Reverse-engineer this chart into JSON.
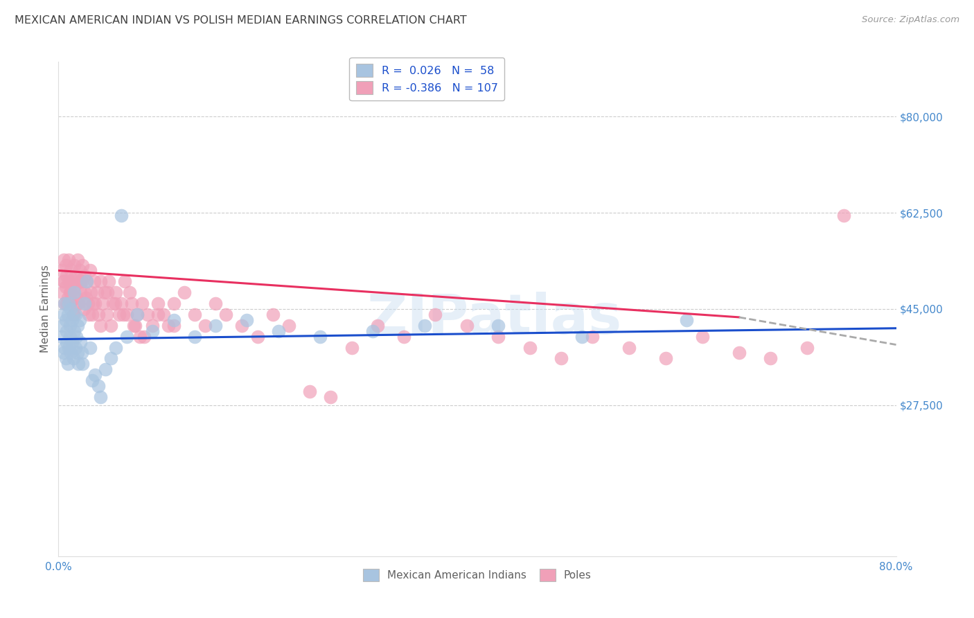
{
  "title": "MEXICAN AMERICAN INDIAN VS POLISH MEDIAN EARNINGS CORRELATION CHART",
  "source": "Source: ZipAtlas.com",
  "ylabel_label": "Median Earnings",
  "xlim": [
    0.0,
    0.8
  ],
  "ylim": [
    0,
    90000
  ],
  "yticks": [
    27500,
    45000,
    62500,
    80000
  ],
  "yticklabels": [
    "$27,500",
    "$45,000",
    "$62,500",
    "$80,000"
  ],
  "blue_color": "#a8c4e0",
  "pink_color": "#f0a0b8",
  "blue_line_color": "#1a4ecc",
  "pink_line_color": "#e83060",
  "dash_line_color": "#aaaaaa",
  "blue_R": 0.026,
  "blue_N": 58,
  "pink_R": -0.386,
  "pink_N": 107,
  "legend_label_blue": "Mexican American Indians",
  "legend_label_pink": "Poles",
  "watermark": "ZIPatlas",
  "background_color": "#ffffff",
  "grid_color": "#cccccc",
  "title_color": "#404040",
  "axis_label_color": "#606060",
  "tick_color": "#4488cc",
  "blue_line_y0": 39500,
  "blue_line_y1": 41500,
  "pink_line_y0": 52000,
  "pink_line_y1_solid": 43500,
  "pink_line_x_solid": 0.65,
  "pink_line_y1_dash": 38500,
  "blue_scatter_x": [
    0.003,
    0.004,
    0.005,
    0.005,
    0.006,
    0.006,
    0.007,
    0.007,
    0.008,
    0.008,
    0.009,
    0.009,
    0.01,
    0.01,
    0.011,
    0.011,
    0.012,
    0.012,
    0.013,
    0.013,
    0.014,
    0.015,
    0.015,
    0.016,
    0.016,
    0.017,
    0.018,
    0.018,
    0.019,
    0.02,
    0.021,
    0.022,
    0.023,
    0.025,
    0.027,
    0.03,
    0.032,
    0.035,
    0.038,
    0.04,
    0.045,
    0.05,
    0.055,
    0.06,
    0.065,
    0.075,
    0.09,
    0.11,
    0.13,
    0.15,
    0.18,
    0.21,
    0.25,
    0.3,
    0.35,
    0.42,
    0.5,
    0.6
  ],
  "blue_scatter_y": [
    40000,
    42000,
    37000,
    44000,
    38000,
    46000,
    36000,
    43000,
    39000,
    41000,
    35000,
    44000,
    38000,
    46000,
    40000,
    42000,
    37000,
    45000,
    39000,
    43000,
    36000,
    41000,
    48000,
    38000,
    44000,
    40000,
    37000,
    42000,
    35000,
    43000,
    39000,
    37000,
    35000,
    46000,
    50000,
    38000,
    32000,
    33000,
    31000,
    29000,
    34000,
    36000,
    38000,
    62000,
    40000,
    44000,
    41000,
    43000,
    40000,
    42000,
    43000,
    41000,
    40000,
    41000,
    42000,
    42000,
    40000,
    43000
  ],
  "pink_scatter_x": [
    0.003,
    0.004,
    0.005,
    0.005,
    0.006,
    0.007,
    0.007,
    0.008,
    0.009,
    0.01,
    0.01,
    0.011,
    0.012,
    0.012,
    0.013,
    0.014,
    0.015,
    0.015,
    0.016,
    0.017,
    0.018,
    0.018,
    0.019,
    0.02,
    0.021,
    0.022,
    0.023,
    0.024,
    0.025,
    0.026,
    0.027,
    0.028,
    0.03,
    0.031,
    0.032,
    0.034,
    0.035,
    0.037,
    0.038,
    0.04,
    0.042,
    0.044,
    0.046,
    0.048,
    0.05,
    0.052,
    0.055,
    0.058,
    0.06,
    0.063,
    0.065,
    0.068,
    0.07,
    0.073,
    0.075,
    0.078,
    0.08,
    0.085,
    0.09,
    0.095,
    0.1,
    0.105,
    0.11,
    0.12,
    0.13,
    0.14,
    0.15,
    0.16,
    0.175,
    0.19,
    0.205,
    0.22,
    0.24,
    0.26,
    0.28,
    0.305,
    0.33,
    0.36,
    0.39,
    0.42,
    0.45,
    0.48,
    0.51,
    0.545,
    0.58,
    0.615,
    0.65,
    0.68,
    0.715,
    0.75,
    0.005,
    0.008,
    0.011,
    0.014,
    0.017,
    0.021,
    0.025,
    0.029,
    0.033,
    0.04,
    0.047,
    0.054,
    0.062,
    0.072,
    0.082,
    0.095,
    0.11
  ],
  "pink_scatter_y": [
    52000,
    48000,
    54000,
    50000,
    46000,
    53000,
    49000,
    51000,
    47000,
    54000,
    50000,
    46000,
    52000,
    48000,
    50000,
    44000,
    53000,
    49000,
    51000,
    47000,
    50000,
    54000,
    46000,
    52000,
    48000,
    50000,
    53000,
    45000,
    51000,
    47000,
    50000,
    46000,
    52000,
    48000,
    44000,
    50000,
    46000,
    48000,
    44000,
    50000,
    46000,
    48000,
    44000,
    50000,
    42000,
    46000,
    48000,
    44000,
    46000,
    50000,
    44000,
    48000,
    46000,
    42000,
    44000,
    40000,
    46000,
    44000,
    42000,
    46000,
    44000,
    42000,
    46000,
    48000,
    44000,
    42000,
    46000,
    44000,
    42000,
    40000,
    44000,
    42000,
    30000,
    29000,
    38000,
    42000,
    40000,
    44000,
    42000,
    40000,
    38000,
    36000,
    40000,
    38000,
    36000,
    40000,
    37000,
    36000,
    38000,
    62000,
    50000,
    46000,
    48000,
    44000,
    46000,
    50000,
    48000,
    44000,
    46000,
    42000,
    48000,
    46000,
    44000,
    42000,
    40000,
    44000,
    42000
  ]
}
